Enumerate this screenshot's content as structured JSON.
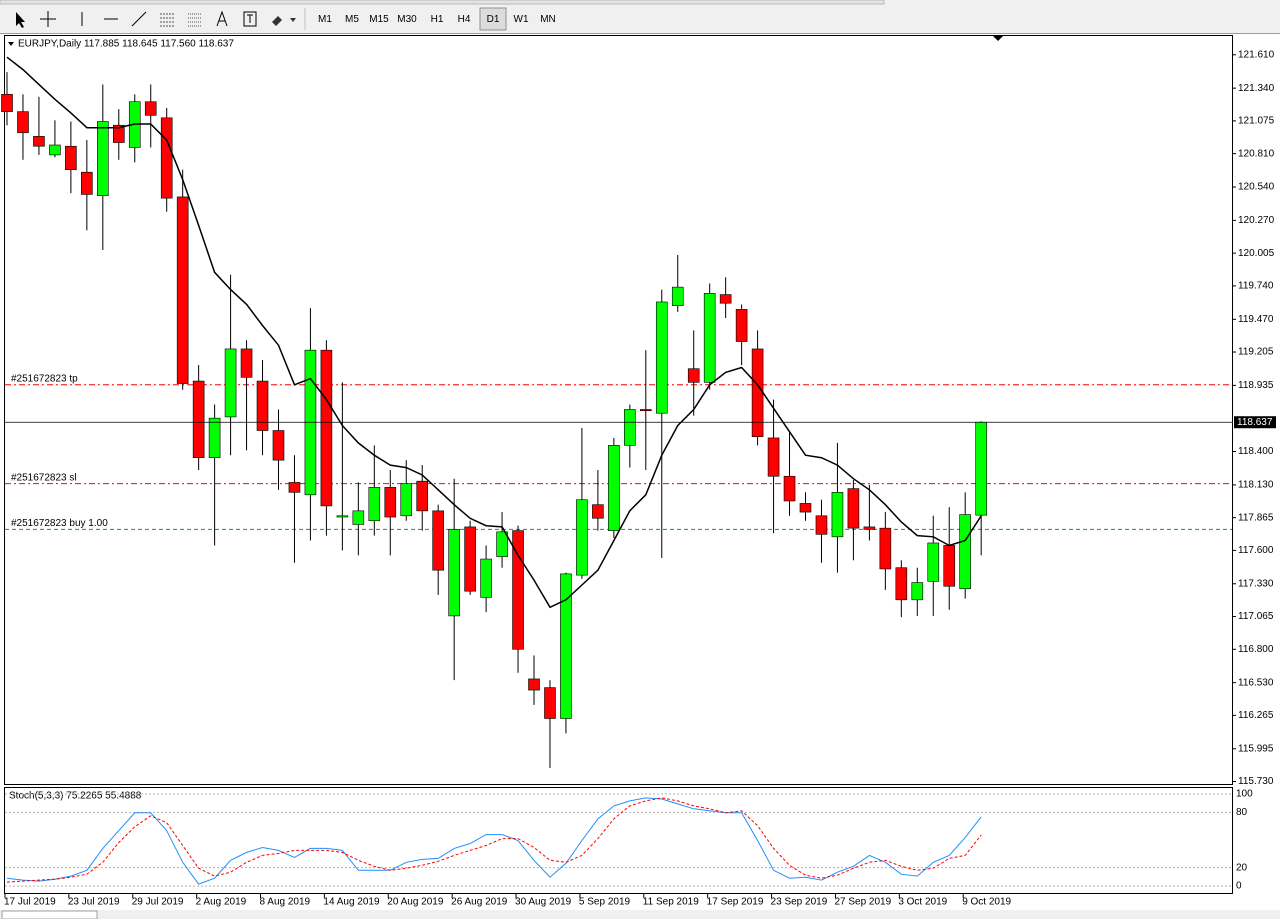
{
  "toolbar": {
    "timeframes": [
      "M1",
      "M5",
      "M15",
      "M30",
      "H1",
      "H4",
      "D1",
      "W1",
      "MN"
    ],
    "active": "D1"
  },
  "chart_data": [
    {
      "type": "candlestick",
      "title": "EURJPY,Daily 117.885 118.645 117.560 118.637",
      "categories": [
        "17 Jul 2019",
        null,
        null,
        null,
        "23 Jul 2019",
        null,
        null,
        null,
        "29 Jul 2019",
        null,
        null,
        null,
        "2 Aug 2019",
        null,
        null,
        null,
        "8 Aug 2019",
        null,
        null,
        null,
        "14 Aug 2019",
        null,
        null,
        null,
        "20 Aug 2019",
        null,
        null,
        null,
        "26 Aug 2019",
        null,
        null,
        null,
        "30 Aug 2019",
        null,
        null,
        null,
        "5 Sep 2019",
        null,
        null,
        null,
        "11 Sep 2019",
        null,
        null,
        null,
        "17 Sep 2019",
        null,
        null,
        null,
        "23 Sep 2019",
        null,
        null,
        null,
        "27 Sep 2019",
        null,
        null,
        null,
        "3 Oct 2019",
        null,
        null,
        null,
        "9 Oct 2019",
        null
      ],
      "open": [
        121.29,
        121.15,
        120.95,
        120.8,
        120.87,
        120.66,
        120.47,
        121.04,
        120.86,
        121.23,
        121.1,
        120.46,
        118.97,
        118.35,
        118.68,
        119.23,
        118.97,
        118.57,
        118.15,
        118.05,
        119.22,
        117.87,
        117.81,
        117.84,
        118.11,
        117.88,
        118.16,
        117.92,
        117.07,
        117.79,
        117.22,
        117.55,
        117.76,
        116.56,
        116.49,
        116.24,
        117.4,
        117.97,
        117.76,
        118.45,
        118.74,
        118.71,
        119.58,
        119.07,
        118.96,
        119.67,
        119.55,
        119.23,
        118.51,
        118.2,
        117.98,
        117.88,
        117.71,
        118.1,
        117.79,
        117.78,
        117.46,
        117.2,
        117.35,
        117.64,
        117.29,
        117.885
      ],
      "high": [
        121.47,
        121.29,
        121.27,
        121.08,
        121.07,
        120.92,
        121.37,
        121.17,
        121.29,
        121.37,
        121.18,
        120.68,
        119.1,
        118.78,
        119.83,
        119.3,
        119.14,
        118.74,
        118.37,
        119.56,
        119.3,
        118.96,
        118.15,
        118.45,
        118.25,
        118.33,
        118.29,
        117.97,
        118.18,
        117.84,
        117.64,
        117.91,
        117.8,
        116.75,
        116.55,
        117.42,
        118.59,
        118.25,
        118.51,
        118.78,
        119.22,
        119.71,
        119.99,
        119.38,
        119.76,
        119.81,
        119.59,
        119.38,
        118.82,
        118.56,
        118.07,
        118.01,
        118.47,
        118.17,
        118.13,
        117.91,
        117.52,
        117.46,
        117.88,
        117.95,
        118.07,
        118.645
      ],
      "low": [
        121.04,
        120.76,
        120.8,
        120.78,
        120.49,
        120.19,
        120.03,
        120.76,
        120.74,
        120.86,
        120.34,
        118.9,
        118.25,
        117.64,
        118.37,
        118.41,
        118.37,
        118.09,
        117.5,
        117.68,
        117.72,
        117.6,
        117.56,
        117.72,
        117.56,
        117.84,
        117.76,
        117.24,
        116.55,
        117.24,
        117.1,
        117.46,
        116.61,
        116.35,
        115.84,
        116.12,
        117.37,
        117.76,
        117.7,
        118.27,
        118.25,
        117.54,
        119.53,
        118.69,
        118.9,
        119.48,
        119.1,
        118.45,
        117.74,
        117.88,
        117.84,
        117.5,
        117.42,
        117.52,
        117.68,
        117.28,
        117.06,
        117.07,
        117.07,
        117.12,
        117.21,
        117.56
      ],
      "close": [
        121.15,
        120.98,
        120.87,
        120.88,
        120.68,
        120.48,
        121.07,
        120.9,
        121.23,
        121.12,
        120.45,
        118.95,
        118.35,
        118.67,
        119.23,
        119.0,
        118.57,
        118.33,
        118.07,
        119.22,
        117.96,
        117.88,
        117.92,
        118.11,
        117.87,
        118.14,
        117.92,
        117.44,
        117.77,
        117.27,
        117.53,
        117.75,
        116.8,
        116.47,
        116.24,
        117.41,
        118.01,
        117.86,
        118.45,
        118.74,
        118.73,
        119.61,
        119.73,
        118.96,
        119.68,
        119.6,
        119.29,
        118.52,
        118.2,
        118.0,
        117.91,
        117.73,
        118.07,
        117.78,
        117.77,
        117.45,
        117.2,
        117.34,
        117.66,
        117.31,
        117.89,
        118.637
      ],
      "up_color": "#00ff00",
      "down_color": "#ff0000",
      "ma": {
        "color": "#000000",
        "values": [
          121.59,
          121.49,
          121.37,
          121.25,
          121.14,
          121.02,
          121.02,
          121.02,
          121.05,
          121.05,
          120.92,
          120.6,
          120.23,
          119.85,
          119.71,
          119.59,
          119.42,
          119.26,
          118.94,
          118.99,
          118.82,
          118.61,
          118.47,
          118.37,
          118.29,
          118.27,
          118.21,
          118.09,
          117.97,
          117.86,
          117.8,
          117.79,
          117.56,
          117.36,
          117.14,
          117.2,
          117.32,
          117.44,
          117.68,
          117.92,
          118.05,
          118.37,
          118.61,
          118.74,
          118.94,
          119.04,
          119.08,
          118.94,
          118.75,
          118.56,
          118.37,
          118.35,
          118.29,
          118.18,
          118.09,
          117.97,
          117.83,
          117.72,
          117.71,
          117.64,
          117.68,
          117.88
        ]
      },
      "levels": [
        {
          "label": "#251672823 tp",
          "value": 118.94,
          "color": "#ff0000",
          "style": "dashdot"
        },
        {
          "label": "#251672823 sl",
          "value": 118.14,
          "color": "#ff0000",
          "style": "dashdot"
        },
        {
          "label": "#251672823 buy 1.00",
          "value": 117.77,
          "color": "#00b000",
          "style": "dashed"
        }
      ],
      "ylim": [
        115.71,
        121.77
      ],
      "yticks": [
        {
          "value": 121.61,
          "label": "121.610"
        },
        {
          "value": 121.34,
          "label": "121.340"
        },
        121.075,
        {
          "value": 120.81,
          "label": "120.810"
        },
        {
          "value": 120.54,
          "label": "120.540"
        },
        {
          "value": 120.27,
          "label": "120.270"
        },
        120.005,
        {
          "value": 119.74,
          "label": "119.740"
        },
        {
          "value": 119.47,
          "label": "119.470"
        },
        119.205,
        118.935,
        {
          "value": 118.4,
          "label": "118.400"
        },
        {
          "value": 118.13,
          "label": "118.130"
        },
        117.865,
        {
          "value": 117.6,
          "label": "117.600"
        },
        {
          "value": 117.33,
          "label": "117.330"
        },
        117.065,
        {
          "value": 116.8,
          "label": "116.800"
        },
        {
          "value": 116.53,
          "label": "116.530"
        },
        116.265,
        115.995,
        {
          "value": 115.73,
          "label": "115.730"
        }
      ]
    },
    {
      "type": "line",
      "title": "Stoch(5,3,3) 75.2265 55.4888",
      "series": [
        {
          "color": "#1e90ff",
          "dashed": false,
          "values": [
            8.6,
            6.5,
            5.4,
            7.5,
            10.8,
            17.2,
            40.9,
            60.2,
            79.6,
            79.6,
            60.2,
            25.8,
            2.2,
            8.6,
            28.0,
            36.6,
            41.9,
            38.7,
            31.2,
            40.9,
            40.9,
            38.7,
            17.2,
            17.2,
            17.2,
            25.8,
            29.0,
            30.1,
            40.9,
            46.2,
            55.9,
            55.9,
            49.5,
            28.0,
            9.7,
            24.7,
            49.5,
            73.1,
            87.1,
            92.5,
            95.7,
            94.6,
            89.2,
            83.9,
            81.7,
            79.6,
            79.6,
            49.5,
            17.2,
            8.6,
            9.7,
            6.5,
            15.1,
            21.5,
            33.3,
            25.8,
            12.9,
            10.8,
            25.8,
            33.3,
            52.7,
            75.2
          ]
        },
        {
          "color": "#ff0000",
          "dashed": true,
          "values": [
            4.3,
            5.4,
            6.5,
            7.5,
            9.7,
            12.9,
            25.8,
            47.3,
            64.5,
            76.3,
            68.8,
            44.1,
            19.4,
            10.8,
            15.1,
            25.8,
            33.3,
            35.5,
            38.7,
            38.7,
            38.7,
            36.6,
            28.0,
            21.5,
            17.2,
            19.4,
            22.6,
            26.9,
            33.3,
            38.7,
            44.1,
            51.6,
            51.6,
            41.9,
            28.0,
            25.8,
            33.3,
            51.6,
            73.1,
            87.1,
            92.5,
            95.7,
            92.5,
            87.1,
            83.9,
            79.6,
            81.7,
            65.6,
            40.9,
            22.6,
            11.8,
            8.6,
            11.8,
            19.4,
            25.8,
            28.0,
            21.5,
            17.2,
            19.4,
            30.1,
            33.3,
            55.5
          ]
        }
      ],
      "ylim": [
        -7.5,
        106.5
      ],
      "yticks": [
        100,
        80,
        20,
        0
      ]
    }
  ]
}
